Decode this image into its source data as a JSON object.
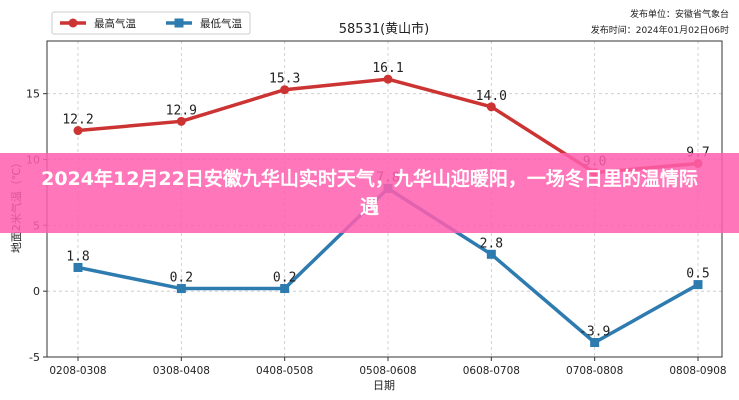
{
  "headline": "2024年12月22日安徽九华山实时天气，九华山迎暖阳，一场冬日里的温情际遇",
  "publisher": {
    "unit": "发布单位：安徽省气象台",
    "time": "发布时间：2024年01月02日06时"
  },
  "colors": {
    "high": "#cc3333",
    "low": "#2e7bb0",
    "banner": "#ff5faf",
    "grid": "#c8c8c8"
  },
  "chart_data": {
    "type": "line",
    "title": "58531(黄山市)",
    "xlabel": "日期",
    "ylabel": "地面2米气温（℃）",
    "categories": [
      "0208-0308",
      "0308-0408",
      "0408-0508",
      "0508-0608",
      "0608-0708",
      "0708-0808",
      "0808-0908"
    ],
    "ylim": [
      -5,
      19
    ],
    "yticks": [
      -5,
      0,
      5,
      10,
      15
    ],
    "grid": true,
    "legend_position": "top-left",
    "series": [
      {
        "name": "最高气温",
        "values": [
          12.2,
          12.9,
          15.3,
          16.1,
          14.0,
          9.0,
          9.7
        ],
        "labels": [
          "12.2",
          "12.9",
          "15.3",
          "16.1",
          "14.0",
          "9.0",
          "9.7"
        ],
        "color": "#cc3333",
        "marker": "circle"
      },
      {
        "name": "最低气温",
        "values": [
          1.8,
          0.2,
          0.2,
          7.8,
          2.8,
          -3.9,
          0.5
        ],
        "labels": [
          "1.8",
          "0.2",
          "0.2",
          "7.8",
          "2.8",
          "-3.9",
          "0.5"
        ],
        "color": "#2e7bb0",
        "marker": "square"
      }
    ]
  }
}
